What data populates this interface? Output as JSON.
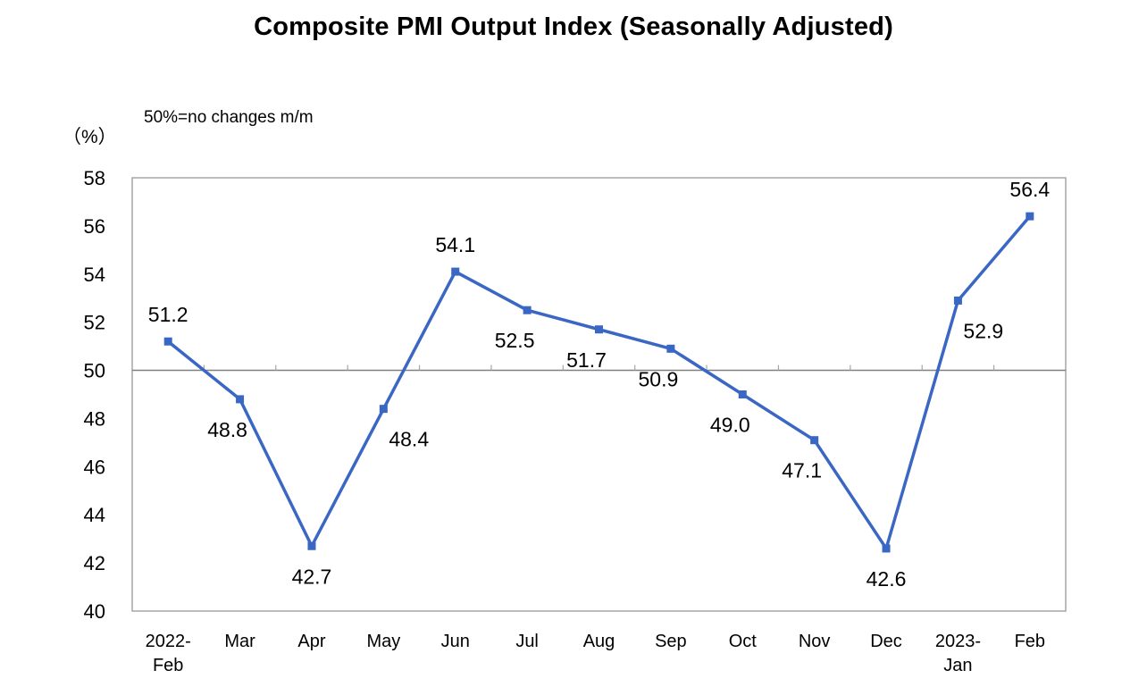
{
  "chart_data": {
    "type": "line",
    "title": "Composite PMI Output Index (Seasonally Adjusted)",
    "note": "50%=no changes m/m",
    "ylabel": "（%）",
    "xlabel": "",
    "ylim": [
      40,
      58
    ],
    "yticks": [
      40,
      42,
      44,
      46,
      48,
      50,
      52,
      54,
      56,
      58
    ],
    "reference_line": 50,
    "grid": false,
    "categories": [
      [
        "2022-",
        "Feb"
      ],
      [
        "Mar"
      ],
      [
        "Apr"
      ],
      [
        "May"
      ],
      [
        "Jun"
      ],
      [
        "Jul"
      ],
      [
        "Aug"
      ],
      [
        "Sep"
      ],
      [
        "Oct"
      ],
      [
        "Nov"
      ],
      [
        "Dec"
      ],
      [
        "2023-",
        "Jan"
      ],
      [
        "Feb"
      ]
    ],
    "series": [
      {
        "values": [
          51.2,
          48.8,
          42.7,
          48.4,
          54.1,
          52.5,
          51.7,
          50.9,
          49.0,
          47.1,
          42.6,
          52.9,
          56.4
        ],
        "data_labels": [
          "51.2",
          "48.8",
          "42.7",
          "48.4",
          "54.1",
          "52.5",
          "51.7",
          "50.9",
          "49.0",
          "47.1",
          "42.6",
          "52.9",
          "56.4"
        ],
        "color": "#3a66c4"
      }
    ],
    "colors": {
      "line": "#3a66c4",
      "axis": "#a6a6a6",
      "reference": "#808080",
      "text": "#000000"
    }
  }
}
